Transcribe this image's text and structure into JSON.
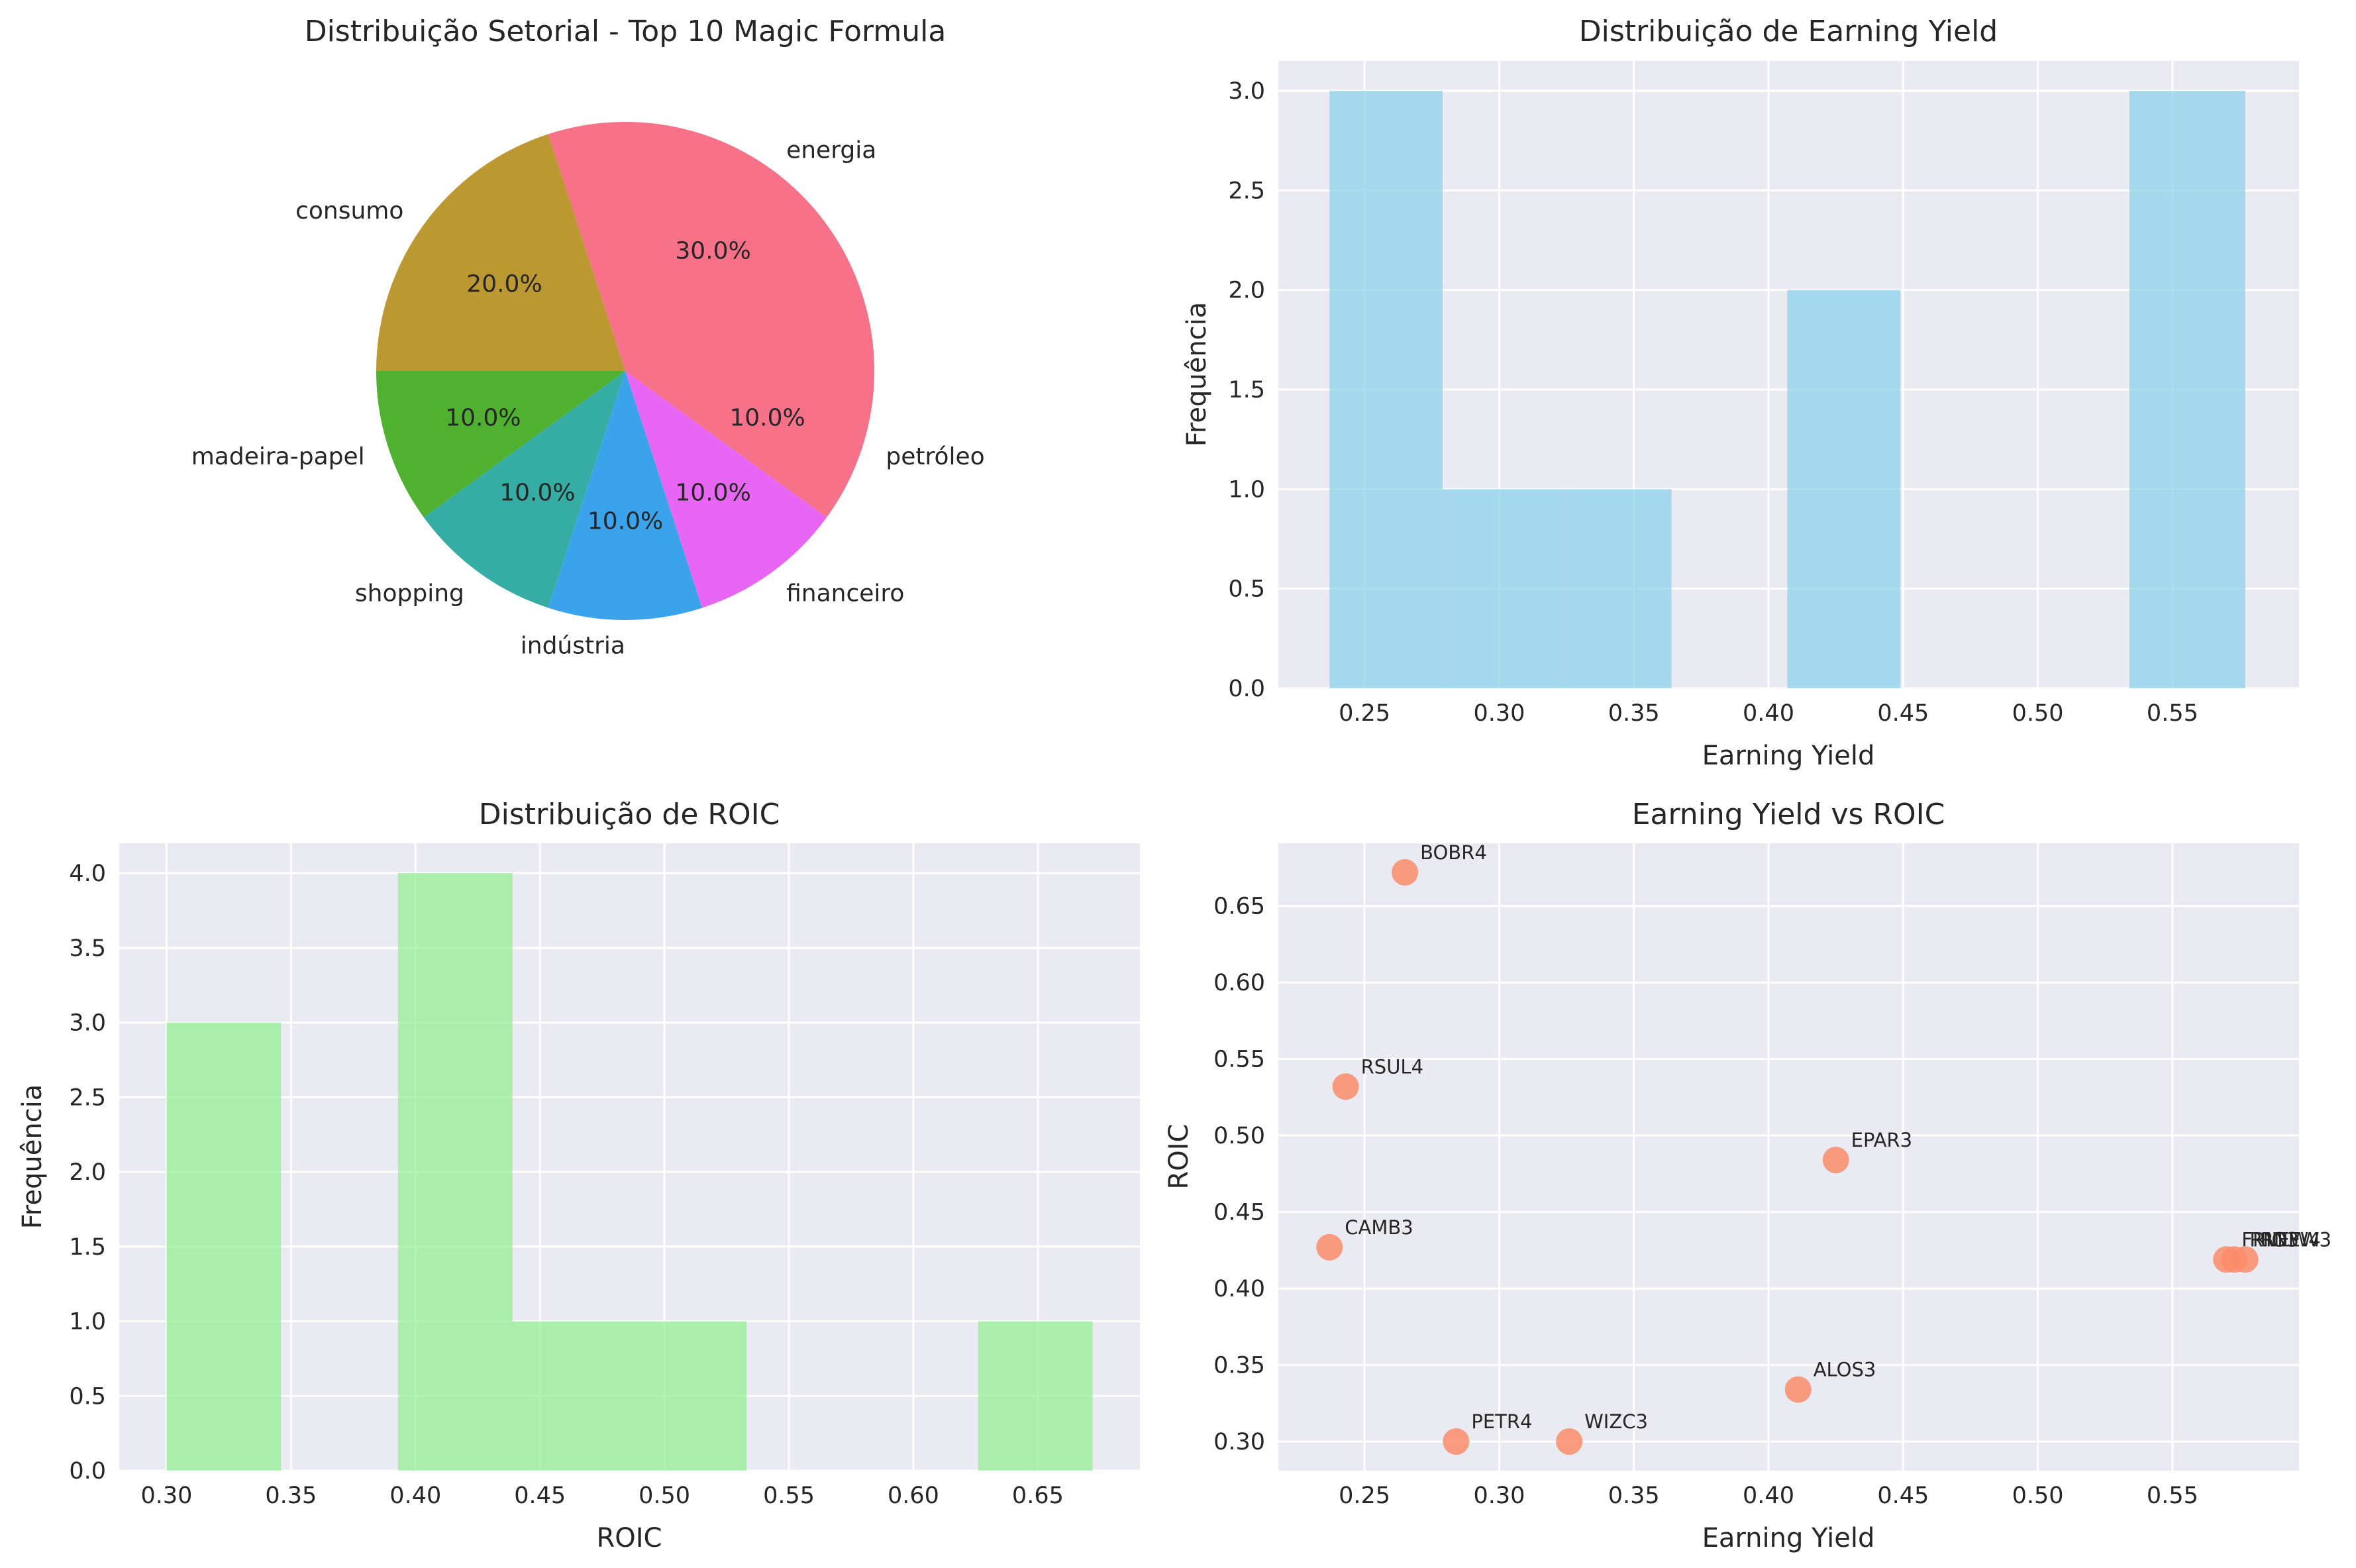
{
  "chart_data": [
    {
      "type": "pie",
      "title": "Distribuição Setorial - Top 10 Magic Formula",
      "slices": [
        {
          "label": "energia",
          "value": 30.0,
          "pct_label": "30.0%",
          "color": "#f77189"
        },
        {
          "label": "consumo",
          "value": 20.0,
          "pct_label": "20.0%",
          "color": "#bb9832"
        },
        {
          "label": "madeira-papel",
          "value": 10.0,
          "pct_label": "10.0%",
          "color": "#50b131"
        },
        {
          "label": "shopping",
          "value": 10.0,
          "pct_label": "10.0%",
          "color": "#36ada4"
        },
        {
          "label": "indústria",
          "value": 10.0,
          "pct_label": "10.0%",
          "color": "#3ba3ec"
        },
        {
          "label": "financeiro",
          "value": 10.0,
          "pct_label": "10.0%",
          "color": "#e866f4"
        },
        {
          "label": "petróleo",
          "value": 10.0,
          "pct_label": "10.0%",
          "color": "#f77189"
        }
      ]
    },
    {
      "type": "bar",
      "subtype": "histogram",
      "title": "Distribuição de Earning Yield",
      "xlabel": "Earning Yield",
      "ylabel": "Frequência",
      "color": "#87ceeb",
      "xlim": [
        0.218,
        0.597
      ],
      "ylim": [
        0,
        3.15
      ],
      "xticks": [
        "0.25",
        "0.30",
        "0.35",
        "0.40",
        "0.45",
        "0.50",
        "0.55"
      ],
      "yticks": [
        "0.0",
        "0.5",
        "1.0",
        "1.5",
        "2.0",
        "2.5",
        "3.0"
      ],
      "bins": [
        {
          "x0": 0.237,
          "x1": 0.279,
          "count": 3
        },
        {
          "x0": 0.279,
          "x1": 0.322,
          "count": 1
        },
        {
          "x0": 0.322,
          "x1": 0.364,
          "count": 1
        },
        {
          "x0": 0.364,
          "x1": 0.407,
          "count": 0
        },
        {
          "x0": 0.407,
          "x1": 0.449,
          "count": 2
        },
        {
          "x0": 0.449,
          "x1": 0.492,
          "count": 0
        },
        {
          "x0": 0.492,
          "x1": 0.534,
          "count": 0
        },
        {
          "x0": 0.534,
          "x1": 0.577,
          "count": 3
        }
      ]
    },
    {
      "type": "bar",
      "subtype": "histogram",
      "title": "Distribuição de ROIC",
      "xlabel": "ROIC",
      "ylabel": "Frequência",
      "color": "#90ee90",
      "xlim": [
        0.281,
        0.691
      ],
      "ylim": [
        0,
        4.2
      ],
      "xticks": [
        "0.30",
        "0.35",
        "0.40",
        "0.45",
        "0.50",
        "0.55",
        "0.60",
        "0.65"
      ],
      "yticks": [
        "0.0",
        "0.5",
        "1.0",
        "1.5",
        "2.0",
        "2.5",
        "3.0",
        "3.5",
        "4.0"
      ],
      "bins": [
        {
          "x0": 0.3,
          "x1": 0.346,
          "count": 3
        },
        {
          "x0": 0.346,
          "x1": 0.393,
          "count": 0
        },
        {
          "x0": 0.393,
          "x1": 0.439,
          "count": 4
        },
        {
          "x0": 0.439,
          "x1": 0.486,
          "count": 1
        },
        {
          "x0": 0.486,
          "x1": 0.533,
          "count": 1
        },
        {
          "x0": 0.533,
          "x1": 0.579,
          "count": 0
        },
        {
          "x0": 0.579,
          "x1": 0.626,
          "count": 0
        },
        {
          "x0": 0.626,
          "x1": 0.672,
          "count": 1
        }
      ]
    },
    {
      "type": "scatter",
      "title": "Earning Yield vs ROIC",
      "xlabel": "Earning Yield",
      "ylabel": "ROIC",
      "color": "#fa8c6a",
      "xlim": [
        0.218,
        0.597
      ],
      "ylim": [
        0.281,
        0.691
      ],
      "xticks": [
        "0.25",
        "0.30",
        "0.35",
        "0.40",
        "0.45",
        "0.50",
        "0.55"
      ],
      "yticks": [
        "0.30",
        "0.35",
        "0.40",
        "0.45",
        "0.50",
        "0.55",
        "0.60",
        "0.65"
      ],
      "points": [
        {
          "label": "BOBR4",
          "x": 0.265,
          "y": 0.672
        },
        {
          "label": "RSUL4",
          "x": 0.243,
          "y": 0.532
        },
        {
          "label": "EPAR3",
          "x": 0.425,
          "y": 0.484
        },
        {
          "label": "CAMB3",
          "x": 0.237,
          "y": 0.427
        },
        {
          "label": "ALOS3",
          "x": 0.411,
          "y": 0.334
        },
        {
          "label": "PETR4",
          "x": 0.284,
          "y": 0.3
        },
        {
          "label": "WIZC3",
          "x": 0.326,
          "y": 0.3
        },
        {
          "label": "FRIO3",
          "x": 0.57,
          "y": 0.419
        },
        {
          "label": "RNEW4",
          "x": 0.573,
          "y": 0.419
        },
        {
          "label": "RNEW3",
          "x": 0.577,
          "y": 0.419
        }
      ]
    }
  ]
}
